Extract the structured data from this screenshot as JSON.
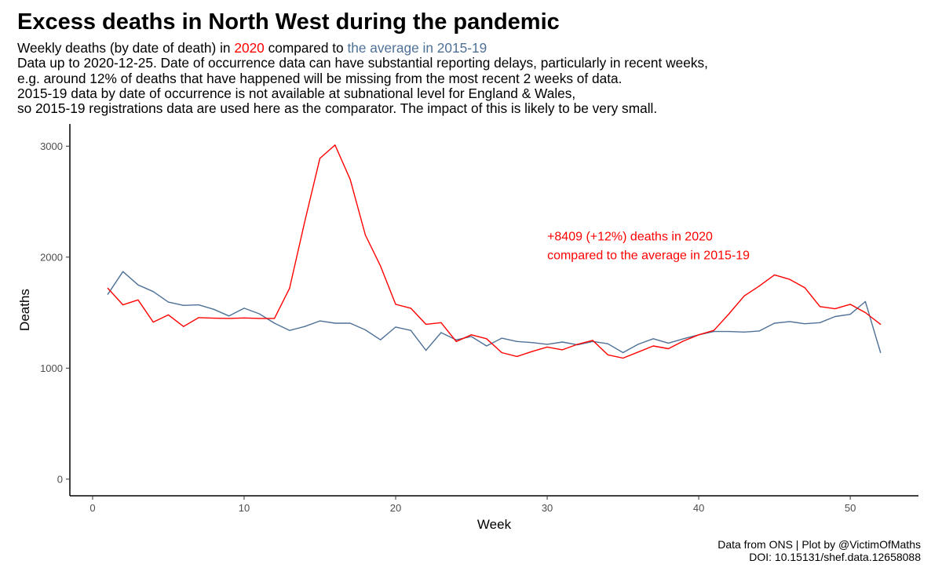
{
  "title": "Excess deaths in North West during the pandemic",
  "subtitle": {
    "prefix": "Weekly deaths (by date of death) in ",
    "year_label": "2020",
    "middle": " compared to ",
    "avg_label": "the average in 2015-19",
    "notes": [
      "Data up to 2020-12-25. Date of occurrence data can have substantial reporting delays, particularly in recent weeks,",
      "e.g. around 12% of deaths that have happened will be missing from the most recent 2 weeks of data.",
      "2015-19 data by date of occurrence is not available at subnational level for England & Wales,",
      "so 2015-19 registrations data are used here as the comparator. The impact of this is likely to be very small."
    ]
  },
  "caption": {
    "line1": "Data from ONS | Plot by @VictimOfMaths",
    "line2": "DOI: 10.15131/shef.data.12658088"
  },
  "chart_data": {
    "type": "line",
    "xlabel": "Week",
    "ylabel": "Deaths",
    "xlim": [
      -1.5,
      54.5
    ],
    "ylim": [
      -150,
      3200
    ],
    "xticks": [
      0,
      10,
      20,
      30,
      40,
      50
    ],
    "yticks": [
      0,
      1000,
      2000,
      3000
    ],
    "grid": false,
    "annotation": {
      "line1": "+8409 (+12%) deaths in 2020",
      "line2": "compared to the average in 2015-19",
      "x": 30,
      "y": 2150
    },
    "series": [
      {
        "name": "2020",
        "color": "#ff0000",
        "x": [
          1,
          2,
          3,
          4,
          5,
          6,
          7,
          8,
          9,
          10,
          11,
          12,
          13,
          14,
          15,
          16,
          17,
          18,
          19,
          20,
          21,
          22,
          23,
          24,
          25,
          26,
          27,
          28,
          29,
          30,
          31,
          32,
          33,
          34,
          35,
          36,
          37,
          38,
          39,
          40,
          41,
          42,
          43,
          44,
          45,
          46,
          47,
          48,
          49,
          50,
          51,
          52
        ],
        "values": [
          1720,
          1570,
          1615,
          1415,
          1480,
          1375,
          1455,
          1450,
          1448,
          1452,
          1448,
          1448,
          1720,
          2320,
          2890,
          3010,
          2700,
          2200,
          1920,
          1575,
          1540,
          1395,
          1410,
          1240,
          1300,
          1265,
          1140,
          1105,
          1150,
          1190,
          1165,
          1215,
          1250,
          1120,
          1090,
          1145,
          1200,
          1175,
          1245,
          1300,
          1340,
          1490,
          1650,
          1740,
          1840,
          1800,
          1725,
          1555,
          1535,
          1575,
          1500,
          1395
        ]
      },
      {
        "name": "the average in 2015-19",
        "color": "#4e7196",
        "x": [
          1,
          2,
          3,
          4,
          5,
          6,
          7,
          8,
          9,
          10,
          11,
          12,
          13,
          14,
          15,
          16,
          17,
          18,
          19,
          20,
          21,
          22,
          23,
          24,
          25,
          26,
          27,
          28,
          29,
          30,
          31,
          32,
          33,
          34,
          35,
          36,
          37,
          38,
          39,
          40,
          41,
          42,
          43,
          44,
          45,
          46,
          47,
          48,
          49,
          50,
          51,
          52
        ],
        "values": [
          1665,
          1870,
          1750,
          1690,
          1595,
          1565,
          1570,
          1530,
          1470,
          1540,
          1490,
          1405,
          1340,
          1375,
          1425,
          1405,
          1405,
          1345,
          1255,
          1370,
          1340,
          1160,
          1320,
          1255,
          1285,
          1200,
          1270,
          1240,
          1230,
          1215,
          1235,
          1210,
          1240,
          1220,
          1140,
          1215,
          1265,
          1225,
          1265,
          1300,
          1330,
          1330,
          1325,
          1335,
          1405,
          1420,
          1400,
          1410,
          1465,
          1485,
          1600,
          1140
        ]
      }
    ]
  }
}
